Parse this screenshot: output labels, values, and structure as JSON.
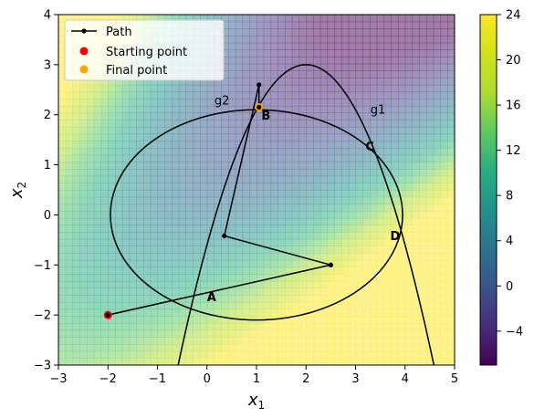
{
  "chart_data": {
    "type": "contour",
    "xlim": [
      -3,
      5
    ],
    "ylim": [
      -3,
      4
    ],
    "xlabel": "x",
    "xlabel_sub": "1",
    "ylabel": "x",
    "ylabel_sub": "2",
    "x_ticks": [
      -3,
      -2,
      -1,
      0,
      1,
      2,
      3,
      4,
      5
    ],
    "y_ticks": [
      -3,
      -2,
      -1,
      0,
      1,
      2,
      3,
      4
    ],
    "colorbar": {
      "range": [
        -7,
        24
      ],
      "ticks": [
        -4,
        0,
        4,
        8,
        12,
        16,
        20,
        24
      ],
      "colormap": "viridis"
    },
    "constraints": [
      {
        "name": "g1",
        "shape": "parabola",
        "vertex": [
          2,
          3
        ],
        "coefficient": -0.9,
        "label": "g1",
        "label_pos": [
          3.3,
          2.02
        ]
      },
      {
        "name": "g2",
        "shape": "ellipse",
        "center": [
          1,
          0
        ],
        "semi_axes": [
          2.95,
          2.1
        ],
        "label": "g2",
        "label_pos": [
          0.15,
          2.2
        ]
      }
    ],
    "path": {
      "name": "Path",
      "x": [
        -2.0,
        2.5,
        0.35,
        1.05,
        1.05
      ],
      "y": [
        -2.0,
        -1.0,
        -0.42,
        2.6,
        2.15
      ]
    },
    "points": [
      {
        "name": "Starting point",
        "x": -2.0,
        "y": -2.0,
        "color": "#ff0000"
      },
      {
        "name": "Final point",
        "x": 1.05,
        "y": 2.15,
        "color": "#ffa500"
      }
    ],
    "annotations": [
      {
        "text": "A",
        "x": 0.0,
        "y": -1.72
      },
      {
        "text": "B",
        "x": 1.1,
        "y": 1.9
      },
      {
        "text": "C",
        "x": 3.2,
        "y": 1.28
      },
      {
        "text": "D",
        "x": 3.7,
        "y": -0.5
      }
    ],
    "legend": {
      "placement": "upper-left",
      "entries": [
        "Path",
        "Starting point",
        "Final point"
      ]
    },
    "colors": {
      "annotation": "#e8281c",
      "line": "#000000"
    }
  }
}
